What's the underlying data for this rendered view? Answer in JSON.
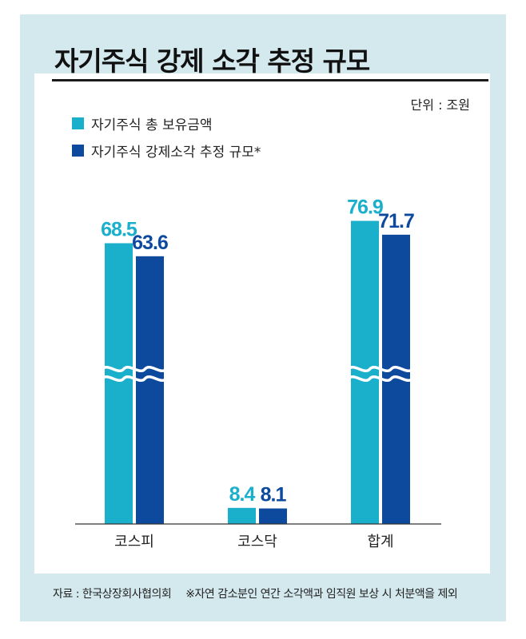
{
  "colors": {
    "frame_bg": "#d4e9ee",
    "series_1": "#1ab0cc",
    "series_2": "#0d4a9e",
    "axis": "#333333"
  },
  "title": "자기주식 강제 소각 추정 규모",
  "unit_label": "단위 : 조원",
  "source_label": "자료 : 한국상장회사협의회",
  "footnote": "※자연 감소분인 연간 소각액과 임직원 보상 시 처분액을 제외",
  "chart_data": {
    "type": "bar",
    "categories": [
      "코스피",
      "코스닥",
      "합계"
    ],
    "series": [
      {
        "name": "자기주식 총 보유금액",
        "values": [
          68.5,
          8.4,
          76.9
        ]
      },
      {
        "name": "자기주식 강제소각 추정 규모*",
        "values": [
          63.6,
          8.1,
          71.7
        ]
      }
    ],
    "axis_break": true,
    "legend_position": "top-left"
  }
}
